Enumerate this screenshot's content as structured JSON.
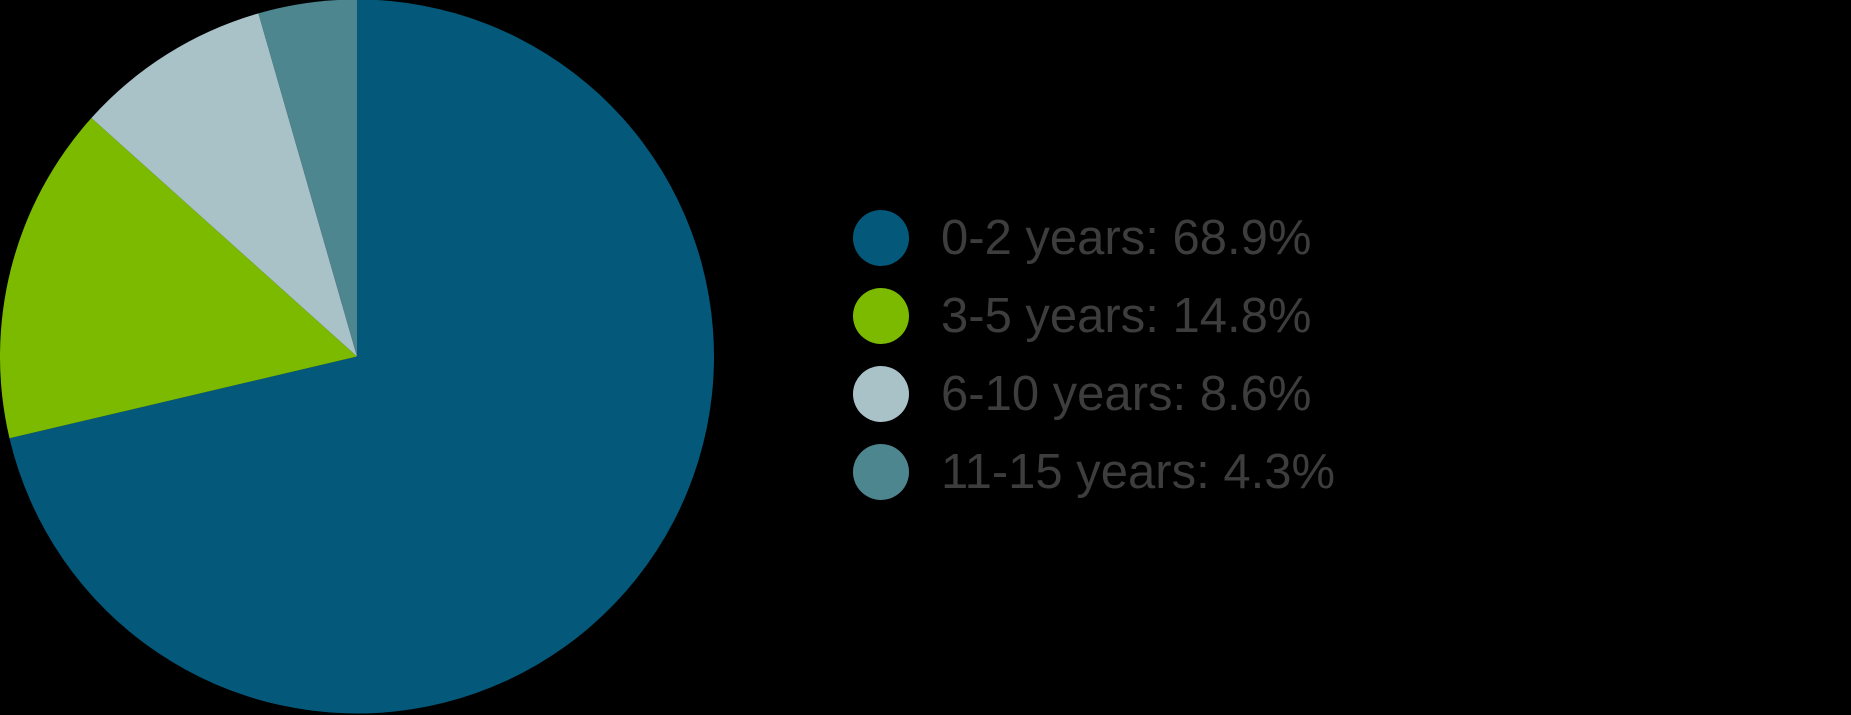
{
  "canvas": {
    "background": "#000000"
  },
  "chart_data": {
    "type": "pie",
    "title": "",
    "categories": [
      "0-2 years",
      "3-5 years",
      "6-10 years",
      "11-15 years"
    ],
    "values": [
      68.9,
      14.8,
      8.6,
      4.3
    ],
    "value_unit": "%",
    "colors": [
      "#04597a",
      "#7cba00",
      "#a9c2c8",
      "#4e8690"
    ],
    "direction": "clockwise",
    "start_angle_deg_from_top": 0,
    "normalize_to_full_circle": true,
    "legend_position": "right",
    "legend": {
      "text_color": "#3d3d3d",
      "entries": [
        {
          "text": "0-2 years: 68.9%"
        },
        {
          "text": "3-5 years: 14.8%"
        },
        {
          "text": "6-10 years: 8.6%"
        },
        {
          "text": "11-15 years: 4.3%"
        }
      ]
    }
  }
}
